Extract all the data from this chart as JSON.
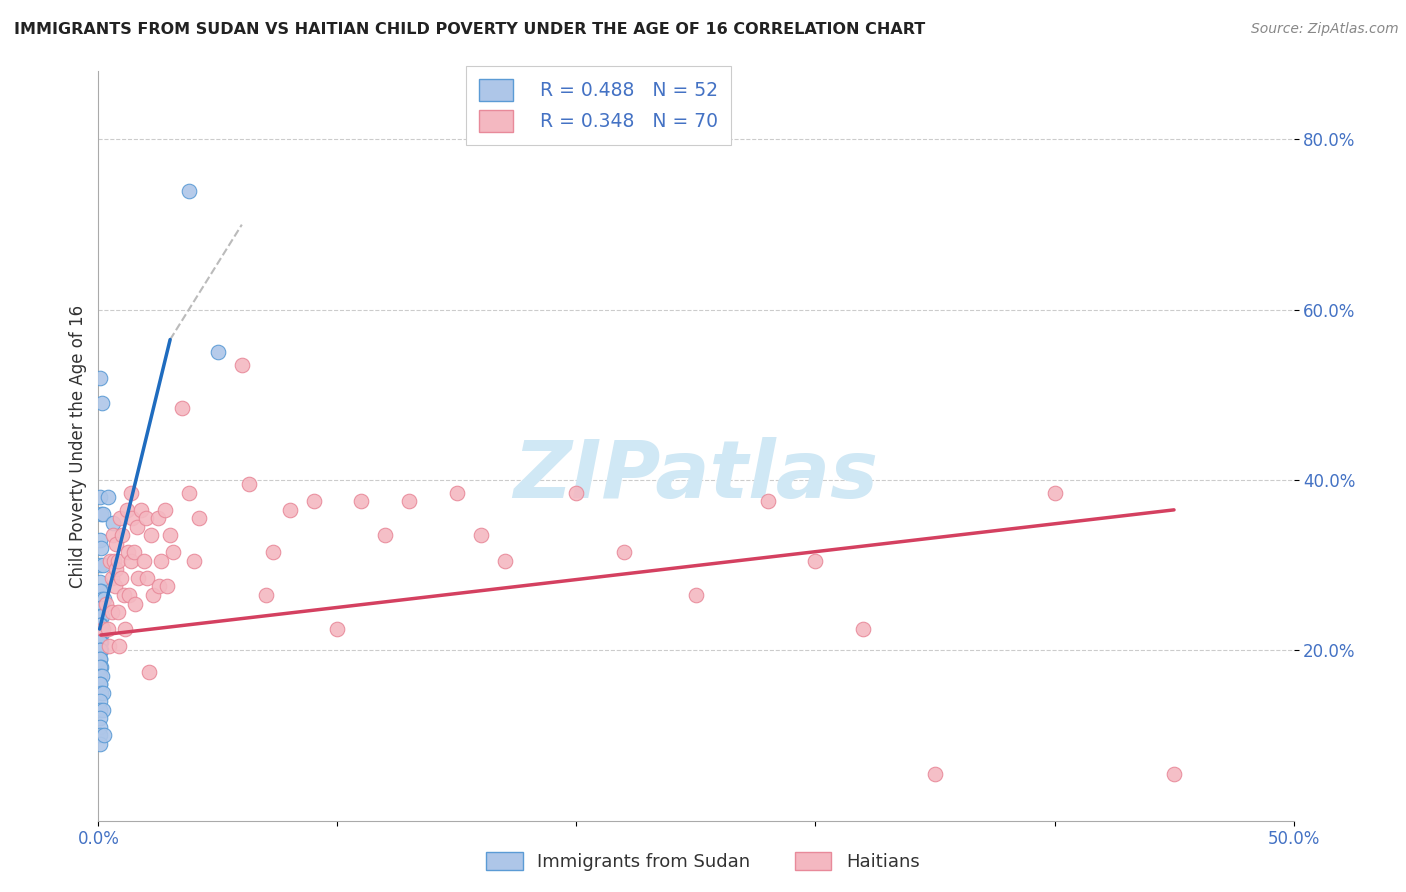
{
  "title": "IMMIGRANTS FROM SUDAN VS HAITIAN CHILD POVERTY UNDER THE AGE OF 16 CORRELATION CHART",
  "source": "Source: ZipAtlas.com",
  "ylabel": "Child Poverty Under the Age of 16",
  "xlabel_sudan": "Immigrants from Sudan",
  "xlabel_haitian": "Haitians",
  "xmin": 0.0,
  "xmax": 0.5,
  "ymin": 0.0,
  "ymax": 0.88,
  "yticks": [
    0.2,
    0.4,
    0.6,
    0.8
  ],
  "xticks": [
    0.0,
    0.1,
    0.2,
    0.3,
    0.4,
    0.5
  ],
  "legend_r_sudan": "R = 0.488",
  "legend_n_sudan": "N = 52",
  "legend_r_haitian": "R = 0.348",
  "legend_n_haitian": "N = 70",
  "color_sudan_fill": "#aec6e8",
  "color_haitian_fill": "#f4b8c1",
  "color_sudan_edge": "#5b9bd5",
  "color_haitian_edge": "#e88a9a",
  "color_sudan_line": "#1f6cbf",
  "color_haitian_line": "#d44060",
  "color_axis_text": "#4472c4",
  "color_title": "#222222",
  "color_source": "#888888",
  "watermark_text": "ZIPatlas",
  "watermark_color": "#d0e8f5",
  "sudan_points": [
    [
      0.0008,
      0.52
    ],
    [
      0.0015,
      0.49
    ],
    [
      0.0005,
      0.38
    ],
    [
      0.0012,
      0.36
    ],
    [
      0.002,
      0.36
    ],
    [
      0.0008,
      0.33
    ],
    [
      0.001,
      0.32
    ],
    [
      0.0006,
      0.3
    ],
    [
      0.0018,
      0.3
    ],
    [
      0.0008,
      0.28
    ],
    [
      0.0012,
      0.27
    ],
    [
      0.0006,
      0.27
    ],
    [
      0.0015,
      0.26
    ],
    [
      0.0022,
      0.26
    ],
    [
      0.0008,
      0.25
    ],
    [
      0.001,
      0.25
    ],
    [
      0.0006,
      0.24
    ],
    [
      0.0015,
      0.24
    ],
    [
      0.0008,
      0.23
    ],
    [
      0.0012,
      0.23
    ],
    [
      0.0006,
      0.23
    ],
    [
      0.0008,
      0.22
    ],
    [
      0.0015,
      0.22
    ],
    [
      0.0006,
      0.22
    ],
    [
      0.0008,
      0.21
    ],
    [
      0.0012,
      0.21
    ],
    [
      0.0006,
      0.21
    ],
    [
      0.0008,
      0.2
    ],
    [
      0.001,
      0.2
    ],
    [
      0.0006,
      0.2
    ],
    [
      0.0008,
      0.19
    ],
    [
      0.0006,
      0.19
    ],
    [
      0.0012,
      0.18
    ],
    [
      0.0008,
      0.18
    ],
    [
      0.0006,
      0.17
    ],
    [
      0.0015,
      0.17
    ],
    [
      0.0008,
      0.16
    ],
    [
      0.0006,
      0.16
    ],
    [
      0.0012,
      0.15
    ],
    [
      0.002,
      0.15
    ],
    [
      0.0008,
      0.14
    ],
    [
      0.0006,
      0.13
    ],
    [
      0.002,
      0.13
    ],
    [
      0.0008,
      0.12
    ],
    [
      0.0006,
      0.11
    ],
    [
      0.0008,
      0.1
    ],
    [
      0.0006,
      0.09
    ],
    [
      0.0025,
      0.1
    ],
    [
      0.004,
      0.38
    ],
    [
      0.006,
      0.35
    ],
    [
      0.038,
      0.74
    ],
    [
      0.05,
      0.55
    ]
  ],
  "haitian_points": [
    [
      0.002,
      0.225
    ],
    [
      0.003,
      0.255
    ],
    [
      0.004,
      0.225
    ],
    [
      0.0045,
      0.205
    ],
    [
      0.005,
      0.305
    ],
    [
      0.0055,
      0.285
    ],
    [
      0.0058,
      0.245
    ],
    [
      0.0062,
      0.335
    ],
    [
      0.0065,
      0.305
    ],
    [
      0.0068,
      0.275
    ],
    [
      0.0072,
      0.325
    ],
    [
      0.0075,
      0.295
    ],
    [
      0.008,
      0.305
    ],
    [
      0.0082,
      0.245
    ],
    [
      0.0085,
      0.205
    ],
    [
      0.009,
      0.355
    ],
    [
      0.0095,
      0.285
    ],
    [
      0.01,
      0.335
    ],
    [
      0.0105,
      0.265
    ],
    [
      0.011,
      0.225
    ],
    [
      0.012,
      0.365
    ],
    [
      0.0125,
      0.315
    ],
    [
      0.013,
      0.265
    ],
    [
      0.0135,
      0.385
    ],
    [
      0.0138,
      0.305
    ],
    [
      0.0142,
      0.355
    ],
    [
      0.015,
      0.315
    ],
    [
      0.0155,
      0.255
    ],
    [
      0.016,
      0.345
    ],
    [
      0.0165,
      0.285
    ],
    [
      0.018,
      0.365
    ],
    [
      0.019,
      0.305
    ],
    [
      0.02,
      0.355
    ],
    [
      0.0205,
      0.285
    ],
    [
      0.021,
      0.175
    ],
    [
      0.022,
      0.335
    ],
    [
      0.023,
      0.265
    ],
    [
      0.025,
      0.355
    ],
    [
      0.0255,
      0.275
    ],
    [
      0.026,
      0.305
    ],
    [
      0.028,
      0.365
    ],
    [
      0.0285,
      0.275
    ],
    [
      0.03,
      0.335
    ],
    [
      0.031,
      0.315
    ],
    [
      0.035,
      0.485
    ],
    [
      0.038,
      0.385
    ],
    [
      0.04,
      0.305
    ],
    [
      0.042,
      0.355
    ],
    [
      0.06,
      0.535
    ],
    [
      0.063,
      0.395
    ],
    [
      0.07,
      0.265
    ],
    [
      0.073,
      0.315
    ],
    [
      0.08,
      0.365
    ],
    [
      0.09,
      0.375
    ],
    [
      0.1,
      0.225
    ],
    [
      0.11,
      0.375
    ],
    [
      0.12,
      0.335
    ],
    [
      0.13,
      0.375
    ],
    [
      0.15,
      0.385
    ],
    [
      0.16,
      0.335
    ],
    [
      0.17,
      0.305
    ],
    [
      0.2,
      0.385
    ],
    [
      0.22,
      0.315
    ],
    [
      0.25,
      0.265
    ],
    [
      0.28,
      0.375
    ],
    [
      0.3,
      0.305
    ],
    [
      0.32,
      0.225
    ],
    [
      0.35,
      0.055
    ],
    [
      0.4,
      0.385
    ],
    [
      0.45,
      0.055
    ]
  ],
  "sudan_trendline_solid": [
    [
      0.0005,
      0.225
    ],
    [
      0.03,
      0.565
    ]
  ],
  "sudan_trendline_dashed": [
    [
      0.03,
      0.565
    ],
    [
      0.06,
      0.7
    ]
  ],
  "haitian_trendline": [
    [
      0.001,
      0.218
    ],
    [
      0.45,
      0.365
    ]
  ]
}
